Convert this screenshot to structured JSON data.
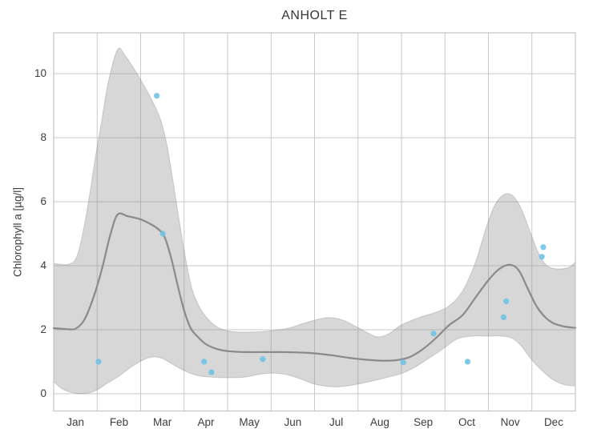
{
  "chart_data": {
    "type": "line",
    "title": "ANHOLT E",
    "ylabel": "Chlorophyll a [µg/l]",
    "xlabel": "",
    "x_categories": [
      "Jan",
      "Feb",
      "Mar",
      "Apr",
      "May",
      "Jun",
      "Jul",
      "Aug",
      "Sep",
      "Oct",
      "Nov",
      "Dec"
    ],
    "x_unit": "month-of-year (0 = Jan 1, 12 = Dec 31)",
    "yticks": [
      0,
      2,
      4,
      6,
      8,
      10
    ],
    "ylim": [
      -0.54,
      11.28
    ],
    "xlim": [
      0,
      12
    ],
    "grid": true,
    "legend": false,
    "colors": {
      "band_fill": "rgba(140,140,140,0.35)",
      "band_edge": "rgba(120,120,120,0.30)",
      "mean_line": "#8a8a8a",
      "points": "#6ec3e6",
      "grid": "#c9c9c9",
      "spine": "#c6c6c6",
      "title_text": "#363636",
      "tick_text": "#3d3d3d"
    },
    "series": [
      {
        "name": "prediction-interval-band",
        "type": "area",
        "upper": [
          [
            0,
            4.07
          ],
          [
            0.35,
            4.05
          ],
          [
            0.55,
            4.35
          ],
          [
            0.75,
            5.6
          ],
          [
            0.95,
            7.3
          ],
          [
            1.1,
            8.5
          ],
          [
            1.25,
            9.7
          ],
          [
            1.47,
            10.76
          ],
          [
            1.65,
            10.55
          ],
          [
            1.85,
            10.15
          ],
          [
            2.05,
            9.7
          ],
          [
            2.25,
            9.2
          ],
          [
            2.45,
            8.6
          ],
          [
            2.6,
            7.8
          ],
          [
            2.75,
            6.6
          ],
          [
            2.9,
            5.3
          ],
          [
            3.05,
            4.1
          ],
          [
            3.2,
            3.2
          ],
          [
            3.4,
            2.6
          ],
          [
            3.65,
            2.2
          ],
          [
            3.9,
            2.0
          ],
          [
            4.2,
            1.93
          ],
          [
            4.6,
            1.93
          ],
          [
            5.0,
            1.97
          ],
          [
            5.4,
            2.05
          ],
          [
            5.75,
            2.2
          ],
          [
            6.1,
            2.33
          ],
          [
            6.35,
            2.38
          ],
          [
            6.65,
            2.3
          ],
          [
            6.95,
            2.1
          ],
          [
            7.2,
            1.92
          ],
          [
            7.45,
            1.78
          ],
          [
            7.7,
            1.87
          ],
          [
            8.0,
            2.15
          ],
          [
            8.4,
            2.38
          ],
          [
            8.8,
            2.55
          ],
          [
            9.1,
            2.75
          ],
          [
            9.4,
            3.2
          ],
          [
            9.7,
            4.1
          ],
          [
            9.95,
            5.2
          ],
          [
            10.15,
            5.9
          ],
          [
            10.35,
            6.22
          ],
          [
            10.55,
            6.2
          ],
          [
            10.75,
            5.8
          ],
          [
            10.95,
            5.1
          ],
          [
            11.15,
            4.4
          ],
          [
            11.35,
            4.0
          ],
          [
            11.6,
            3.9
          ],
          [
            11.85,
            3.95
          ],
          [
            12,
            4.12
          ]
        ],
        "lower": [
          [
            0,
            0.38
          ],
          [
            0.2,
            0.15
          ],
          [
            0.4,
            0.04
          ],
          [
            0.6,
            0.0
          ],
          [
            0.8,
            0.02
          ],
          [
            1.0,
            0.12
          ],
          [
            1.2,
            0.3
          ],
          [
            1.5,
            0.55
          ],
          [
            1.8,
            0.85
          ],
          [
            2.1,
            1.08
          ],
          [
            2.3,
            1.15
          ],
          [
            2.5,
            1.1
          ],
          [
            2.7,
            0.95
          ],
          [
            3.0,
            0.72
          ],
          [
            3.3,
            0.57
          ],
          [
            3.6,
            0.52
          ],
          [
            4.0,
            0.5
          ],
          [
            4.4,
            0.52
          ],
          [
            4.8,
            0.62
          ],
          [
            5.1,
            0.64
          ],
          [
            5.4,
            0.58
          ],
          [
            5.7,
            0.45
          ],
          [
            6.0,
            0.3
          ],
          [
            6.3,
            0.23
          ],
          [
            6.6,
            0.22
          ],
          [
            7.0,
            0.3
          ],
          [
            7.4,
            0.42
          ],
          [
            7.7,
            0.52
          ],
          [
            8.0,
            0.63
          ],
          [
            8.3,
            0.82
          ],
          [
            8.6,
            1.08
          ],
          [
            8.85,
            1.3
          ],
          [
            9.1,
            1.55
          ],
          [
            9.3,
            1.72
          ],
          [
            9.6,
            1.8
          ],
          [
            10.0,
            1.8
          ],
          [
            10.3,
            1.8
          ],
          [
            10.55,
            1.73
          ],
          [
            10.75,
            1.5
          ],
          [
            11.0,
            1.05
          ],
          [
            11.25,
            0.7
          ],
          [
            11.5,
            0.42
          ],
          [
            11.75,
            0.28
          ],
          [
            12,
            0.24
          ]
        ]
      },
      {
        "name": "mean-line",
        "type": "line",
        "points": [
          [
            0,
            2.05
          ],
          [
            0.3,
            2.02
          ],
          [
            0.5,
            2.03
          ],
          [
            0.7,
            2.3
          ],
          [
            0.9,
            2.95
          ],
          [
            1.1,
            3.85
          ],
          [
            1.3,
            4.95
          ],
          [
            1.47,
            5.6
          ],
          [
            1.7,
            5.55
          ],
          [
            2.0,
            5.45
          ],
          [
            2.2,
            5.32
          ],
          [
            2.4,
            5.15
          ],
          [
            2.55,
            4.9
          ],
          [
            2.7,
            4.25
          ],
          [
            2.85,
            3.4
          ],
          [
            3.0,
            2.6
          ],
          [
            3.15,
            2.05
          ],
          [
            3.3,
            1.8
          ],
          [
            3.5,
            1.55
          ],
          [
            3.75,
            1.4
          ],
          [
            4.0,
            1.33
          ],
          [
            4.4,
            1.3
          ],
          [
            4.8,
            1.3
          ],
          [
            5.2,
            1.3
          ],
          [
            5.6,
            1.29
          ],
          [
            6.0,
            1.26
          ],
          [
            6.4,
            1.2
          ],
          [
            6.8,
            1.12
          ],
          [
            7.2,
            1.06
          ],
          [
            7.6,
            1.03
          ],
          [
            7.9,
            1.05
          ],
          [
            8.2,
            1.15
          ],
          [
            8.5,
            1.4
          ],
          [
            8.8,
            1.75
          ],
          [
            9.1,
            2.15
          ],
          [
            9.4,
            2.45
          ],
          [
            9.7,
            3.0
          ],
          [
            10.0,
            3.55
          ],
          [
            10.25,
            3.9
          ],
          [
            10.5,
            4.03
          ],
          [
            10.7,
            3.85
          ],
          [
            10.9,
            3.3
          ],
          [
            11.1,
            2.75
          ],
          [
            11.3,
            2.4
          ],
          [
            11.5,
            2.2
          ],
          [
            11.75,
            2.1
          ],
          [
            12,
            2.06
          ]
        ]
      },
      {
        "name": "observations",
        "type": "scatter",
        "points": [
          [
            1.03,
            1.0
          ],
          [
            2.37,
            9.31
          ],
          [
            2.51,
            5.0
          ],
          [
            3.46,
            1.0
          ],
          [
            3.63,
            0.67
          ],
          [
            4.81,
            1.08
          ],
          [
            8.04,
            0.98
          ],
          [
            8.74,
            1.88
          ],
          [
            9.52,
            1.0
          ],
          [
            10.35,
            2.39
          ],
          [
            10.41,
            2.89
          ],
          [
            11.23,
            4.28
          ],
          [
            11.26,
            4.58
          ]
        ]
      }
    ]
  }
}
